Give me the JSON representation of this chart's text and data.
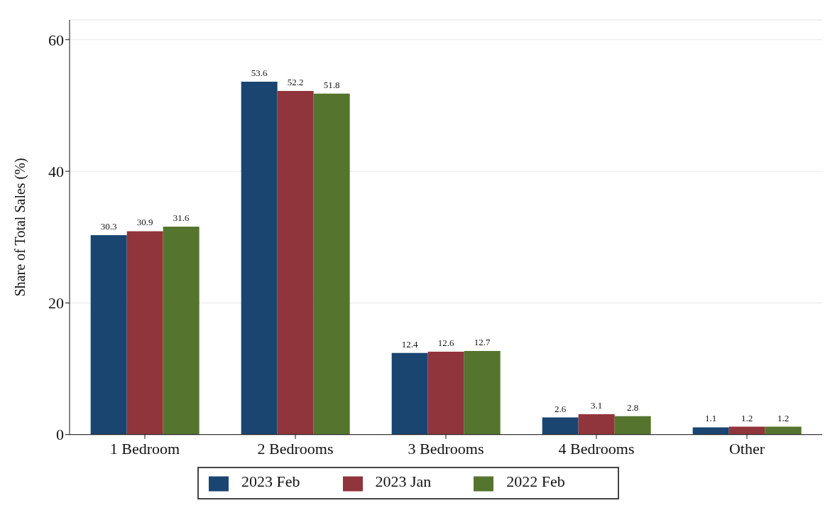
{
  "chart_data": {
    "type": "bar",
    "ylabel": "Share of Total Sales (%)",
    "categories": [
      "1 Bedroom",
      "2 Bedrooms",
      "3 Bedrooms",
      "4 Bedrooms",
      "Other"
    ],
    "series": [
      {
        "name": "2023 Feb",
        "color": "#1a4570",
        "values": [
          30.3,
          53.6,
          12.4,
          2.6,
          1.1
        ]
      },
      {
        "name": "2023 Jan",
        "color": "#90353b",
        "values": [
          30.9,
          52.2,
          12.6,
          3.1,
          1.2
        ]
      },
      {
        "name": "2022 Feb",
        "color": "#55752f",
        "values": [
          31.6,
          51.8,
          12.7,
          2.8,
          1.2
        ]
      }
    ],
    "ylim": [
      0,
      63
    ],
    "yticks": [
      0,
      20,
      40,
      60
    ],
    "grid": "y",
    "data_labels": true,
    "legend": "bottom"
  }
}
